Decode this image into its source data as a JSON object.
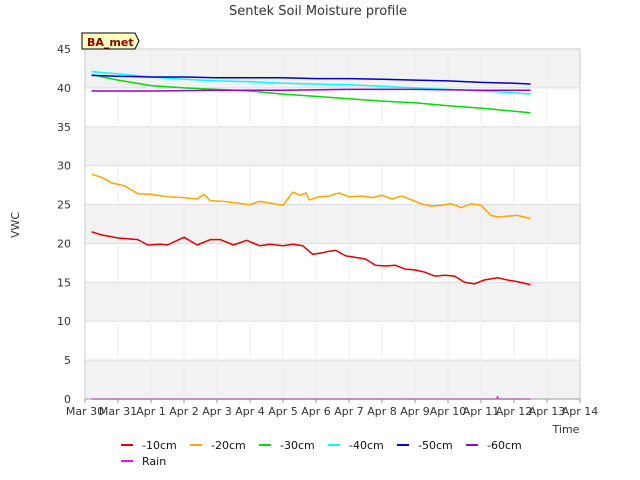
{
  "chart_data": {
    "type": "line",
    "title": "Sentek Soil Moisture profile",
    "badge": "BA_met",
    "xlabel": "Time",
    "ylabel": "VWC",
    "ylim": [
      0,
      45
    ],
    "xlim": [
      "Mar 30",
      "Apr 14"
    ],
    "yticks": [
      0,
      5,
      10,
      15,
      20,
      25,
      30,
      35,
      40,
      45
    ],
    "xticks": [
      "Mar 30",
      "Mar 31",
      "Apr 1",
      "Apr 2",
      "Apr 3",
      "Apr 4",
      "Apr 5",
      "Apr 6",
      "Apr 7",
      "Apr 8",
      "Apr 9",
      "Apr 10",
      "Apr 11",
      "Apr 12",
      "Apr 13",
      "Apr 14"
    ],
    "grid": true,
    "legend_position": "bottom",
    "series": [
      {
        "name": "-10cm",
        "color": "#dd0000",
        "x": [
          0.2,
          0.5,
          1.0,
          1.6,
          1.9,
          2.3,
          2.5,
          3.0,
          3.4,
          3.8,
          4.1,
          4.5,
          4.9,
          5.3,
          5.6,
          6.0,
          6.3,
          6.6,
          6.9,
          7.2,
          7.4,
          7.6,
          7.9,
          8.2,
          8.5,
          8.8,
          9.1,
          9.4,
          9.7,
          10.0,
          10.3,
          10.6,
          10.9,
          11.2,
          11.5,
          11.8,
          12.1,
          12.5,
          12.8,
          13.1,
          13.5
        ],
        "y": [
          21.5,
          21.1,
          20.7,
          20.5,
          19.8,
          19.9,
          19.8,
          20.8,
          19.8,
          20.5,
          20.5,
          19.8,
          20.4,
          19.7,
          19.9,
          19.7,
          19.9,
          19.7,
          18.6,
          18.8,
          19.0,
          19.1,
          18.4,
          18.2,
          18.0,
          17.2,
          17.1,
          17.2,
          16.7,
          16.6,
          16.3,
          15.8,
          15.9,
          15.8,
          15.0,
          14.8,
          15.3,
          15.6,
          15.3,
          15.1,
          14.7
        ]
      },
      {
        "name": "-20cm",
        "color": "#ffa500",
        "x": [
          0.2,
          0.5,
          0.8,
          1.2,
          1.6,
          2.0,
          2.5,
          3.0,
          3.4,
          3.6,
          3.8,
          4.2,
          4.6,
          5.0,
          5.3,
          5.6,
          6.0,
          6.3,
          6.5,
          6.7,
          6.8,
          7.1,
          7.4,
          7.7,
          8.0,
          8.4,
          8.7,
          9.0,
          9.3,
          9.6,
          9.9,
          10.2,
          10.5,
          10.8,
          11.1,
          11.4,
          11.7,
          12.0,
          12.3,
          12.5,
          12.8,
          13.1,
          13.5
        ],
        "y": [
          28.9,
          28.5,
          27.8,
          27.4,
          26.4,
          26.3,
          26.0,
          25.9,
          25.7,
          26.3,
          25.5,
          25.4,
          25.2,
          25.0,
          25.4,
          25.2,
          24.9,
          26.6,
          26.2,
          26.5,
          25.6,
          26.0,
          26.1,
          26.5,
          26.0,
          26.1,
          25.9,
          26.2,
          25.7,
          26.1,
          25.6,
          25.1,
          24.8,
          24.9,
          25.1,
          24.6,
          25.1,
          24.9,
          23.6,
          23.4,
          23.5,
          23.6,
          23.2
        ]
      },
      {
        "name": "-30cm",
        "color": "#00dd00",
        "x": [
          0.2,
          1.0,
          2.0,
          3.0,
          4.0,
          5.0,
          6.0,
          7.0,
          8.0,
          9.0,
          10.0,
          11.0,
          12.0,
          13.0,
          13.5
        ],
        "y": [
          41.7,
          41.0,
          40.3,
          40.0,
          39.8,
          39.6,
          39.2,
          38.9,
          38.6,
          38.3,
          38.1,
          37.7,
          37.4,
          37.0,
          36.8
        ]
      },
      {
        "name": "-40cm",
        "color": "#00ffff",
        "x": [
          0.2,
          1.0,
          2.0,
          3.0,
          4.0,
          5.0,
          6.0,
          7.0,
          8.0,
          9.0,
          10.0,
          11.0,
          12.0,
          13.0,
          13.5
        ],
        "y": [
          42.1,
          41.8,
          41.4,
          41.1,
          40.9,
          40.8,
          40.6,
          40.5,
          40.4,
          40.2,
          40.0,
          39.8,
          39.6,
          39.4,
          39.2
        ]
      },
      {
        "name": "-50cm",
        "color": "#0000cc",
        "x": [
          0.2,
          1.0,
          2.0,
          3.0,
          4.0,
          5.0,
          6.0,
          7.0,
          8.0,
          9.0,
          10.0,
          11.0,
          12.0,
          13.0,
          13.5
        ],
        "y": [
          41.6,
          41.5,
          41.4,
          41.4,
          41.3,
          41.3,
          41.3,
          41.2,
          41.2,
          41.1,
          41.0,
          40.9,
          40.7,
          40.6,
          40.5
        ]
      },
      {
        "name": "-60cm",
        "color": "#9900cc",
        "x": [
          0.2,
          2.0,
          4.0,
          6.0,
          8.0,
          10.0,
          12.0,
          13.5
        ],
        "y": [
          39.6,
          39.6,
          39.7,
          39.7,
          39.8,
          39.8,
          39.7,
          39.7
        ]
      },
      {
        "name": "Rain",
        "color": "#ff00ff",
        "x": [
          0.2,
          12.48,
          12.5,
          12.52,
          13.5
        ],
        "y": [
          0,
          0,
          0.3,
          0,
          0
        ]
      }
    ]
  }
}
